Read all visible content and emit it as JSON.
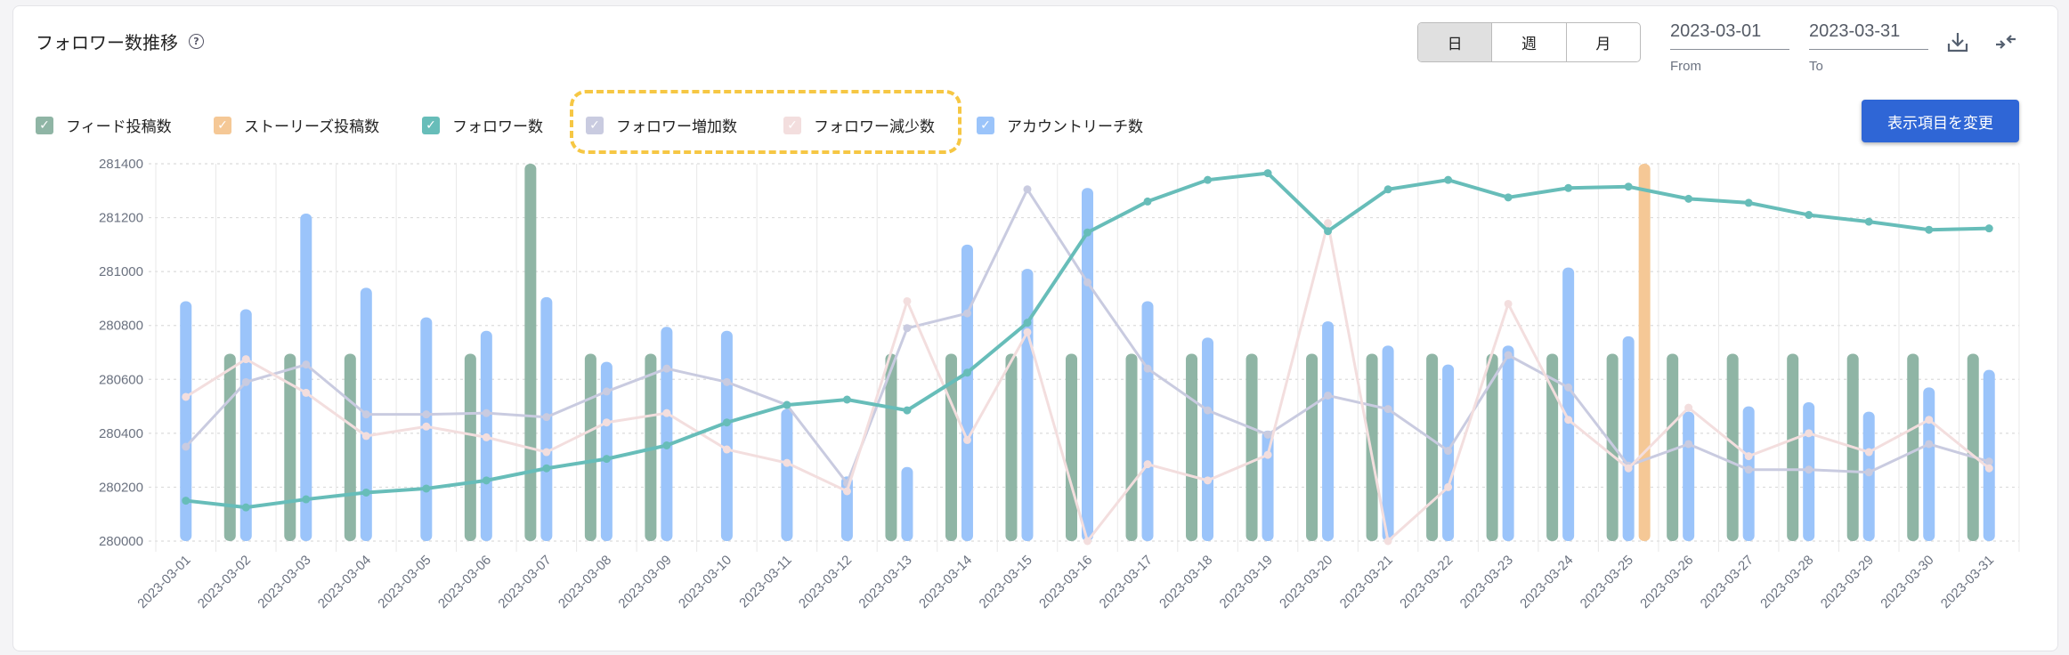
{
  "header": {
    "title": "フォロワー数推移",
    "help_icon": "question-circle-icon"
  },
  "period_toggle": {
    "options": [
      "日",
      "週",
      "月"
    ],
    "selected": "日"
  },
  "date_range": {
    "from_value": "2023-03-01",
    "from_label": "From",
    "to_value": "2023-03-31",
    "to_label": "To"
  },
  "toolbar": {
    "download_icon": "download-icon",
    "collapse_icon": "compress-arrows-icon",
    "change_items_label": "表示項目を変更"
  },
  "legend": [
    {
      "label": "フィード投稿数",
      "color": "#8fb5a5",
      "checked": true
    },
    {
      "label": "ストーリーズ投稿数",
      "color": "#f5c896",
      "checked": true
    },
    {
      "label": "フォロワー数",
      "color": "#67bdb9",
      "checked": true
    },
    {
      "label": "フォロワー増加数",
      "color": "#c9cbe0",
      "checked": true
    },
    {
      "label": "フォロワー減少数",
      "color": "#f3dede",
      "checked": true
    },
    {
      "label": "アカウントリーチ数",
      "color": "#9bc4fa",
      "checked": true
    }
  ],
  "highlight_color": "#f6c744",
  "chart_data": {
    "type": "bar+line",
    "ylim": [
      280000,
      281400
    ],
    "yticks": [
      280000,
      280200,
      280400,
      280600,
      280800,
      281000,
      281200,
      281400
    ],
    "grid": true,
    "legend_placement": "top-left",
    "categories": [
      "2023-03-01",
      "2023-03-02",
      "2023-03-03",
      "2023-03-04",
      "2023-03-05",
      "2023-03-06",
      "2023-03-07",
      "2023-03-08",
      "2023-03-09",
      "2023-03-10",
      "2023-03-11",
      "2023-03-12",
      "2023-03-13",
      "2023-03-14",
      "2023-03-15",
      "2023-03-16",
      "2023-03-17",
      "2023-03-18",
      "2023-03-19",
      "2023-03-20",
      "2023-03-21",
      "2023-03-22",
      "2023-03-23",
      "2023-03-24",
      "2023-03-25",
      "2023-03-26",
      "2023-03-27",
      "2023-03-28",
      "2023-03-29",
      "2023-03-30",
      "2023-03-31"
    ],
    "series": [
      {
        "name": "フィード投稿数",
        "kind": "bar",
        "color": "#8fb5a5",
        "values": [
          null,
          280695,
          280695,
          280695,
          null,
          280695,
          281400,
          280695,
          280695,
          null,
          null,
          null,
          280695,
          280695,
          280695,
          280695,
          280695,
          280695,
          280695,
          280695,
          280695,
          280695,
          280695,
          280695,
          280695,
          280695,
          280695,
          280695,
          280695,
          280695,
          280695
        ]
      },
      {
        "name": "ストーリーズ投稿数",
        "kind": "bar",
        "color": "#f5c896",
        "values": [
          null,
          null,
          null,
          null,
          null,
          null,
          null,
          null,
          null,
          null,
          null,
          null,
          null,
          null,
          null,
          null,
          null,
          null,
          null,
          null,
          null,
          null,
          null,
          null,
          281400,
          null,
          null,
          null,
          null,
          null,
          null
        ]
      },
      {
        "name": "アカウントリーチ数",
        "kind": "bar",
        "color": "#9bc4fa",
        "values": [
          280890,
          280860,
          281215,
          280940,
          280830,
          280780,
          280905,
          280665,
          280795,
          280780,
          280490,
          280240,
          280275,
          281100,
          281010,
          281310,
          280890,
          280755,
          280410,
          280815,
          280725,
          280655,
          280725,
          281015,
          280760,
          280480,
          280500,
          280515,
          280480,
          280570,
          280635
        ]
      },
      {
        "name": "フォロワー増加数",
        "kind": "line",
        "color": "#c9cbe0",
        "values": [
          280350,
          280590,
          280655,
          280470,
          280470,
          280475,
          280460,
          280555,
          280640,
          280590,
          280505,
          280215,
          280790,
          280845,
          281305,
          280960,
          280640,
          280485,
          280395,
          280540,
          280490,
          280335,
          280690,
          280570,
          280280,
          280360,
          280265,
          280265,
          280255,
          280360,
          280295
        ]
      },
      {
        "name": "フォロワー減少数",
        "kind": "line",
        "color": "#f3dede",
        "values": [
          280535,
          280675,
          280550,
          280390,
          280425,
          280385,
          280330,
          280440,
          280475,
          280340,
          280290,
          280185,
          280890,
          280375,
          280775,
          280000,
          280285,
          280225,
          280320,
          281180,
          280000,
          280200,
          280880,
          280450,
          280270,
          280495,
          280315,
          280400,
          280330,
          280450,
          280270
        ]
      },
      {
        "name": "フォロワー数",
        "kind": "line",
        "color": "#67bdb9",
        "values": [
          280150,
          280125,
          280155,
          280180,
          280195,
          280225,
          280270,
          280305,
          280355,
          280440,
          280505,
          280525,
          280485,
          280625,
          280810,
          281145,
          281260,
          281340,
          281365,
          281150,
          281305,
          281340,
          281275,
          281310,
          281315,
          281270,
          281255,
          281210,
          281185,
          281155,
          281160
        ]
      }
    ]
  }
}
